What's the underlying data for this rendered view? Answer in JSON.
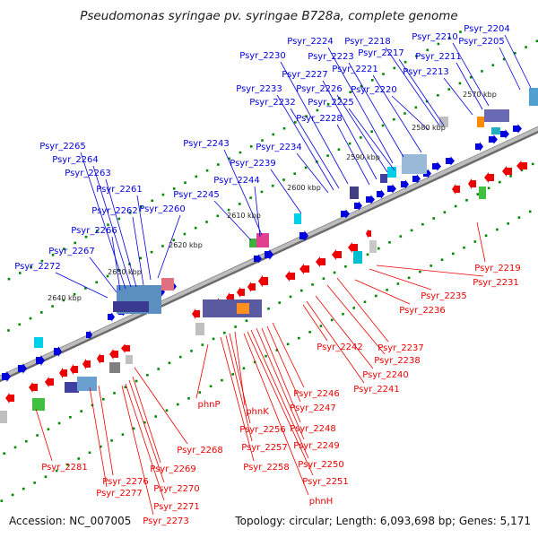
{
  "title": "Pseudomonas syringae pv. syringae B728a, complete genome",
  "footer": {
    "accession": "Accession: NC_007005",
    "topology": "Topology: circular; Length: 6,093,698 bp; Genes: 5,171"
  },
  "colors": {
    "forward": "#0000dd",
    "reverse": "#ee0000",
    "backbone": "#909090",
    "tick": "#008800",
    "tick_label": "#222222"
  },
  "scale_labels": [
    "2570 kbp",
    "2580 kbp",
    "2590 kbp",
    "2600 kbp",
    "2610 kbp",
    "2620 kbp",
    "2630 kbp",
    "2640 kbp"
  ],
  "forward_genes": [
    "Psyr_2204",
    "Psyr_2205",
    "Psyr_2210",
    "Psyr_2211",
    "Psyr_2213",
    "Psyr_2217",
    "Psyr_2218",
    "Psyr_2220",
    "Psyr_2221",
    "Psyr_2223",
    "Psyr_2224",
    "Psyr_2225",
    "Psyr_2226",
    "Psyr_2227",
    "Psyr_2228",
    "Psyr_2230",
    "Psyr_2232",
    "Psyr_2233",
    "Psyr_2234",
    "Psyr_2239",
    "Psyr_2243",
    "Psyr_2244",
    "Psyr_2245",
    "Psyr_2260",
    "Psyr_2261",
    "Psyr_2262",
    "Psyr_2263",
    "Psyr_2264",
    "Psyr_2265",
    "Psyr_2266",
    "Psyr_2267",
    "Psyr_2272"
  ],
  "reverse_genes": [
    "Psyr_2219",
    "Psyr_2231",
    "Psyr_2235",
    "Psyr_2236",
    "Psyr_2237",
    "Psyr_2238",
    "Psyr_2240",
    "Psyr_2241",
    "Psyr_2242",
    "Psyr_2246",
    "Psyr_2247",
    "Psyr_2248",
    "Psyr_2249",
    "Psyr_2250",
    "Psyr_2251",
    "phnH",
    "phnK",
    "Psyr_2256",
    "Psyr_2257",
    "Psyr_2258",
    "phnP",
    "Psyr_2268",
    "Psyr_2269",
    "Psyr_2270",
    "Psyr_2271",
    "Psyr_2273",
    "Psyr_2276",
    "Psyr_2277",
    "Psyr_2281"
  ]
}
